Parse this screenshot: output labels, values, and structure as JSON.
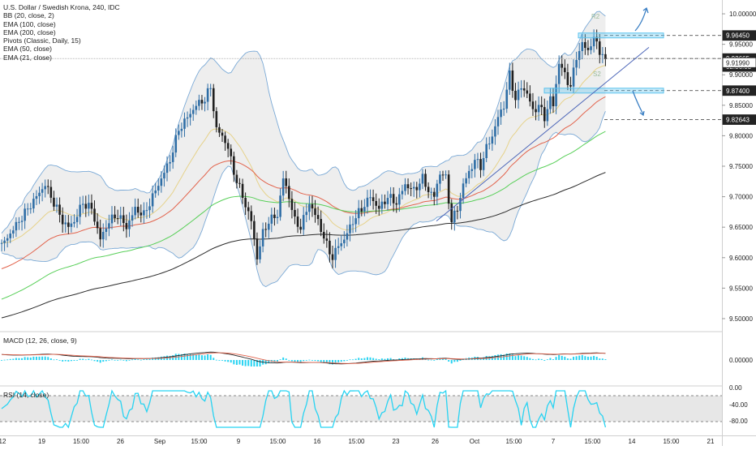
{
  "chart_data": [
    {
      "type": "candlestick",
      "title": "U.S. Dollar / Swedish Krona, 240, IDC",
      "indicators": [
        "BB (20, close, 2)",
        "EMA (100, close)",
        "EMA (200, close)",
        "Pivots (Classic, Daily, 15)",
        "EMA (50, close)",
        "EMA (21, close)"
      ],
      "y_axis": {
        "ticks": [
          "10.00000",
          "9.95000",
          "9.90000",
          "9.85000",
          "9.80000",
          "9.75000",
          "9.70000",
          "9.65000",
          "9.60000",
          "9.55000",
          "9.50000"
        ],
        "ylim": [
          9.48,
          10.02
        ]
      },
      "x_axis": {
        "ticks": [
          "12",
          "19",
          "15:00",
          "26",
          "Sep",
          "15:00",
          "9",
          "15:00",
          "16",
          "15:00",
          "23",
          "26",
          "Oct",
          "15:00",
          "7",
          "15:00",
          "14",
          "15:00",
          "21"
        ]
      },
      "price_labels": [
        {
          "value": "9.96450",
          "price": 9.9645,
          "style": "dark"
        },
        {
          "value": "9.92665",
          "price": 9.92665,
          "style": "dark"
        },
        {
          "value": "02:36:03",
          "price": 9.9135,
          "style": "dark"
        },
        {
          "value": "9.91990",
          "price": 9.9199,
          "style": "outline"
        },
        {
          "value": "9.87400",
          "price": 9.874,
          "style": "dark"
        },
        {
          "value": "9.82643",
          "price": 9.82643,
          "style": "dark"
        }
      ],
      "pivot_labels": [
        "R2",
        "S2"
      ],
      "zones": [
        {
          "price": 9.9645,
          "note": "resistance"
        },
        {
          "price": 9.874,
          "note": "support"
        }
      ],
      "key_levels": [
        9.9645,
        9.92665,
        9.874,
        9.82643
      ],
      "close_anchors": [
        [
          0,
          9.62
        ],
        [
          3,
          9.64
        ],
        [
          6,
          9.66
        ],
        [
          9,
          9.68
        ],
        [
          12,
          9.7
        ],
        [
          15,
          9.72
        ],
        [
          18,
          9.69
        ],
        [
          21,
          9.66
        ],
        [
          23,
          9.65
        ],
        [
          25,
          9.66
        ],
        [
          28,
          9.69
        ],
        [
          31,
          9.68
        ],
        [
          34,
          9.63
        ],
        [
          37,
          9.66
        ],
        [
          40,
          9.67
        ],
        [
          43,
          9.65
        ],
        [
          46,
          9.68
        ],
        [
          49,
          9.67
        ],
        [
          52,
          9.7
        ],
        [
          55,
          9.73
        ],
        [
          58,
          9.76
        ],
        [
          61,
          9.81
        ],
        [
          64,
          9.83
        ],
        [
          67,
          9.85
        ],
        [
          70,
          9.86
        ],
        [
          72,
          9.88
        ],
        [
          74,
          9.81
        ],
        [
          76,
          9.8
        ],
        [
          78,
          9.78
        ],
        [
          80,
          9.74
        ],
        [
          83,
          9.7
        ],
        [
          86,
          9.66
        ],
        [
          88,
          9.6
        ],
        [
          90,
          9.64
        ],
        [
          92,
          9.66
        ],
        [
          95,
          9.67
        ],
        [
          97,
          9.73
        ],
        [
          99,
          9.7
        ],
        [
          101,
          9.66
        ],
        [
          103,
          9.65
        ],
        [
          106,
          9.69
        ],
        [
          109,
          9.66
        ],
        [
          112,
          9.62
        ],
        [
          114,
          9.6
        ],
        [
          116,
          9.62
        ],
        [
          118,
          9.63
        ],
        [
          121,
          9.66
        ],
        [
          124,
          9.68
        ],
        [
          127,
          9.7
        ],
        [
          130,
          9.68
        ],
        [
          133,
          9.7
        ],
        [
          136,
          9.69
        ],
        [
          139,
          9.72
        ],
        [
          142,
          9.71
        ],
        [
          145,
          9.73
        ],
        [
          147,
          9.71
        ],
        [
          149,
          9.7
        ],
        [
          151,
          9.74
        ],
        [
          153,
          9.73
        ],
        [
          155,
          9.66
        ],
        [
          157,
          9.68
        ],
        [
          159,
          9.72
        ],
        [
          161,
          9.74
        ],
        [
          163,
          9.76
        ],
        [
          165,
          9.75
        ],
        [
          167,
          9.78
        ],
        [
          169,
          9.8
        ],
        [
          171,
          9.83
        ],
        [
          173,
          9.85
        ],
        [
          175,
          9.9
        ],
        [
          177,
          9.86
        ],
        [
          179,
          9.88
        ],
        [
          181,
          9.87
        ],
        [
          183,
          9.84
        ],
        [
          185,
          9.85
        ],
        [
          187,
          9.83
        ],
        [
          189,
          9.86
        ],
        [
          190,
          9.85
        ],
        [
          192,
          9.92
        ],
        [
          194,
          9.9
        ],
        [
          196,
          9.88
        ],
        [
          198,
          9.93
        ],
        [
          200,
          9.95
        ],
        [
          202,
          9.94
        ],
        [
          204,
          9.96
        ],
        [
          206,
          9.94
        ],
        [
          208,
          9.926
        ]
      ],
      "macd": {
        "title": "MACD (12, 26, close, 9)",
        "ticks": [
          "0.00000"
        ]
      },
      "rsi": {
        "title": "RSI (14, close)",
        "ticks": [
          "0.00",
          "-40.00",
          "-80.00"
        ]
      },
      "colors": {
        "candle": "#2f6ea6",
        "bb_band": "#7aa9d6",
        "ema21": "#e6d28a",
        "ema50": "#e2634c",
        "ema100": "#58cf58",
        "ema200": "#2b2b2b",
        "zone": "#5bc3ee",
        "arrow": "#3a7fc4",
        "macd_hist": "#26d3f2",
        "macd_signal": "#e2634c",
        "rsi_line": "#26d3f2",
        "pivot_text": "#9abb9a"
      }
    }
  ]
}
